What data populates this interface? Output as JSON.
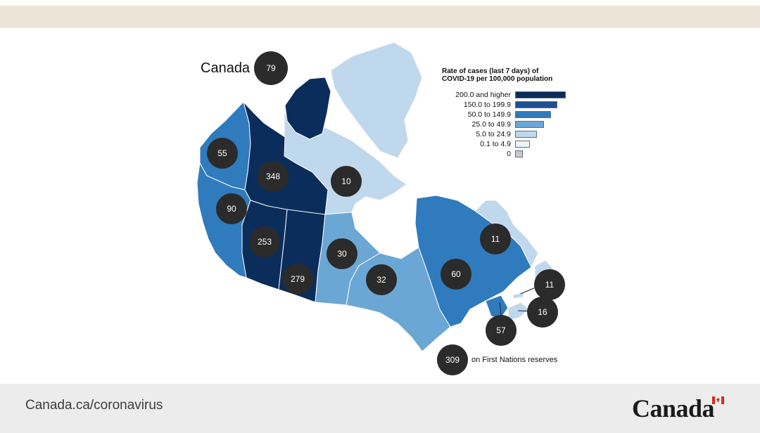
{
  "map": {
    "title": "Canada",
    "national_value": "79",
    "legend": {
      "title_line1": "Rate of cases (last 7 days) of",
      "title_line2": "COVID-19 per 100,000 population",
      "items": [
        {
          "label": "200.0 and higher",
          "color": "#0b2d5c"
        },
        {
          "label": "150.0 to 199.9",
          "color": "#1c4f94"
        },
        {
          "label": "50.0 to 149.9",
          "color": "#2f7bbd"
        },
        {
          "label": "25.0 to 49.9",
          "color": "#6aa7d5"
        },
        {
          "label": "5.0 to 24.9",
          "color": "#bfd8ec"
        },
        {
          "label": "0.1 to 4.9",
          "color": "#eef4fb"
        },
        {
          "label": "0",
          "color": "#c9c9c9"
        }
      ]
    },
    "regions": [
      {
        "name": "Yukon",
        "value": "55",
        "color": "#2f7bbd"
      },
      {
        "name": "Northwest Territories",
        "value": "348",
        "color": "#0b2d5c"
      },
      {
        "name": "Nunavut",
        "value": "10",
        "color": "#bfd8ec"
      },
      {
        "name": "British Columbia",
        "value": "90",
        "color": "#2f7bbd"
      },
      {
        "name": "Alberta",
        "value": "253",
        "color": "#0b2d5c"
      },
      {
        "name": "Saskatchewan",
        "value": "279",
        "color": "#0b2d5c"
      },
      {
        "name": "Manitoba",
        "value": "30",
        "color": "#6aa7d5"
      },
      {
        "name": "Ontario",
        "value": "32",
        "color": "#6aa7d5"
      },
      {
        "name": "Quebec",
        "value": "60",
        "color": "#2f7bbd"
      },
      {
        "name": "Newfoundland and Labrador",
        "value": "11",
        "color": "#bfd8ec"
      },
      {
        "name": "Prince Edward Island",
        "value": "11",
        "color": "#bfd8ec"
      },
      {
        "name": "Nova Scotia",
        "value": "16",
        "color": "#bfd8ec"
      },
      {
        "name": "New Brunswick",
        "value": "57",
        "color": "#2f7bbd"
      }
    ],
    "first_nations": {
      "value": "309",
      "label": "on First Nations reserves"
    }
  },
  "footer": {
    "url": "Canada.ca/coronavirus",
    "wordmark": "Canada"
  }
}
